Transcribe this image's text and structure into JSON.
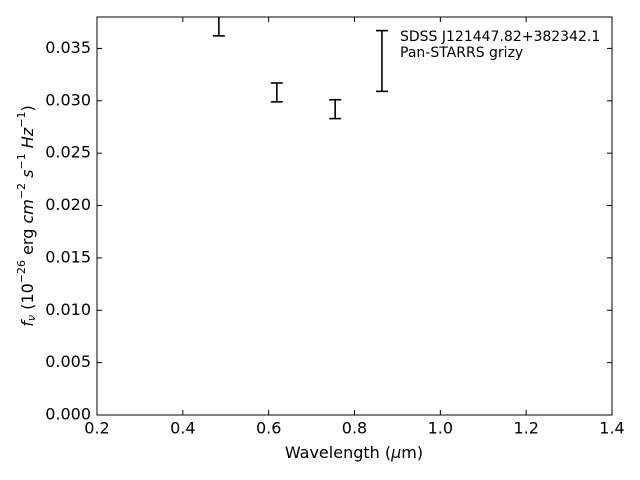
{
  "chart_data": {
    "type": "errorbar",
    "xlabel_parts": [
      "Wavelength (",
      "μ",
      "m)"
    ],
    "ylabel_parts": [
      "f",
      "ν",
      " (10",
      "−26",
      " erg ",
      "cm",
      "−2",
      " ",
      "s",
      "−1",
      " ",
      "Hz",
      "−1",
      ")"
    ],
    "legend_lines": [
      "SDSS J121447.82+382342.1",
      "Pan-STARRS grizy"
    ],
    "series": [
      {
        "color": "#000000",
        "x": [
          0.484,
          0.619,
          0.755,
          0.864
        ],
        "values": [
          0.0375,
          0.0308,
          0.0292,
          0.0338
        ],
        "errors": [
          0.0013,
          0.0009,
          0.0009,
          0.0029
        ]
      }
    ],
    "xlim": [
      0.2,
      1.4
    ],
    "xticks": [
      0.2,
      0.4,
      0.6,
      0.8,
      {
        "value": 1,
        "label": "1.0"
      },
      1.2,
      1.4
    ],
    "ylim": [
      0,
      0.038
    ],
    "yticks": [
      {
        "value": 0,
        "label": "0.000"
      },
      0.005,
      {
        "value": 0.01,
        "label": "0.010"
      },
      0.015,
      {
        "value": 0.02,
        "label": "0.020"
      },
      0.025,
      {
        "value": 0.03,
        "label": "0.030"
      },
      0.035
    ],
    "tick_direction": "in",
    "mirror_ticks": true,
    "grid": false
  }
}
